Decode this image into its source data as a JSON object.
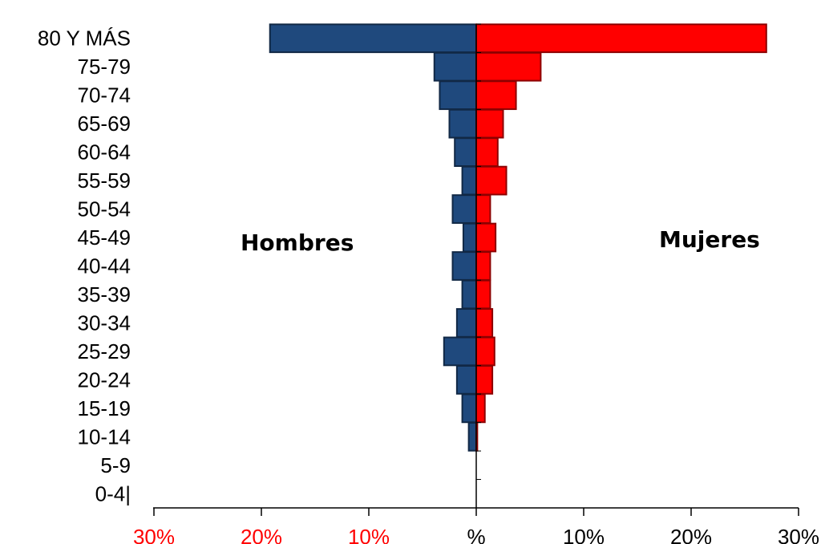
{
  "chart_data": {
    "type": "bar",
    "orientation": "horizontal",
    "layout": "population-pyramid",
    "categories": [
      "80 Y MÁS",
      "75-79",
      "70-74",
      "65-69",
      "60-64",
      "55-59",
      "50-54",
      "45-49",
      "40-44",
      "35-39",
      "30-34",
      "25-29",
      "20-24",
      "15-19",
      "10-14",
      "5-9",
      "0-4|"
    ],
    "series": [
      {
        "name": "Hombres",
        "side": "left",
        "color": "#1f497d",
        "values": [
          19.2,
          3.9,
          3.4,
          2.5,
          2.0,
          1.3,
          2.2,
          1.2,
          2.2,
          1.3,
          1.8,
          3.0,
          1.8,
          1.3,
          0.7,
          0,
          0
        ]
      },
      {
        "name": "Mujeres",
        "side": "right",
        "color": "#ff0000",
        "values": [
          27.0,
          6.0,
          3.7,
          2.5,
          2.0,
          2.8,
          1.3,
          1.8,
          1.3,
          1.3,
          1.5,
          1.7,
          1.5,
          0.8,
          0.1,
          0,
          0
        ]
      }
    ],
    "xlim": [
      -30,
      30
    ],
    "x_ticks": [
      -30,
      -20,
      -10,
      0,
      10,
      20,
      30
    ],
    "x_tick_labels": [
      "30%",
      "20%",
      "10%",
      "%",
      "10%",
      "20%",
      "30%"
    ],
    "x_tick_colors": [
      "#ff0000",
      "#ff0000",
      "#ff0000",
      "#000000",
      "#000000",
      "#000000",
      "#000000"
    ],
    "grid": false
  }
}
